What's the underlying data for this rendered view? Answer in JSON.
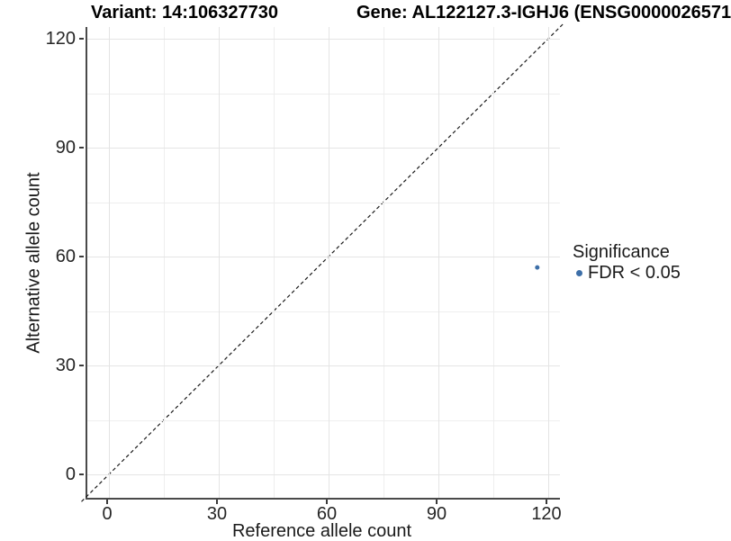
{
  "header": {
    "variant_title": "Variant: 14:106327730",
    "gene_title": "Gene: AL122127.3-IGHJ6 (ENSG0000026571"
  },
  "axes": {
    "x": {
      "label": "Reference allele count",
      "ticks": [
        "0",
        "30",
        "60",
        "90",
        "120"
      ]
    },
    "y": {
      "label": "Alternative allele count",
      "ticks": [
        "0",
        "30",
        "60",
        "90",
        "120"
      ]
    }
  },
  "legend": {
    "title": "Significance",
    "items": [
      {
        "label": "FDR < 0.05",
        "color": "#3d6fa8"
      }
    ]
  },
  "colors": {
    "point": "#3d6fa8",
    "axis_line": "#4a4a4a",
    "tick": "#3a3a3a",
    "text": "#262626",
    "grid_major": "#e4e4e4",
    "grid_minor": "#eeeeee",
    "identity_line": "#1a1a1a",
    "background": "#ffffff"
  },
  "chart_data": {
    "type": "scatter",
    "title_left": "Variant: 14:106327730",
    "title_right": "Gene: AL122127.3-IGHJ6 (ENSG0000026571",
    "xlabel": "Reference allele count",
    "ylabel": "Alternative allele count",
    "xlim": [
      -6,
      123
    ],
    "ylim": [
      -6.5,
      123
    ],
    "xticks": [
      0,
      30,
      60,
      90,
      120
    ],
    "yticks": [
      0,
      30,
      60,
      90,
      120
    ],
    "minor_ticks": [
      15,
      45,
      75,
      105
    ],
    "grid": true,
    "series": [
      {
        "name": "FDR < 0.05",
        "color": "#3d6fa8",
        "points": [
          {
            "x": 117,
            "y": 57
          }
        ]
      }
    ],
    "identity_line": {
      "type": "y=x",
      "style": "dashed",
      "color": "#1a1a1a"
    },
    "legend": {
      "title": "Significance",
      "position": "right"
    }
  }
}
